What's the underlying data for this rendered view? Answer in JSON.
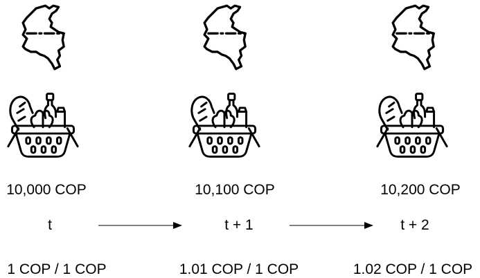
{
  "columns": [
    {
      "price": "10,000 COP",
      "time": "t",
      "ratio": "1 COP / 1 COP"
    },
    {
      "price": "10,100 COP",
      "time": "t + 1",
      "ratio": "1.01 COP / 1 COP"
    },
    {
      "price": "10,200 COP",
      "time": "t + 2",
      "ratio": "1.02 COP / 1 COP"
    }
  ],
  "icons": {
    "map": "colombia-map-icon",
    "basket": "grocery-basket-icon",
    "arrow": "right-arrow-icon"
  }
}
